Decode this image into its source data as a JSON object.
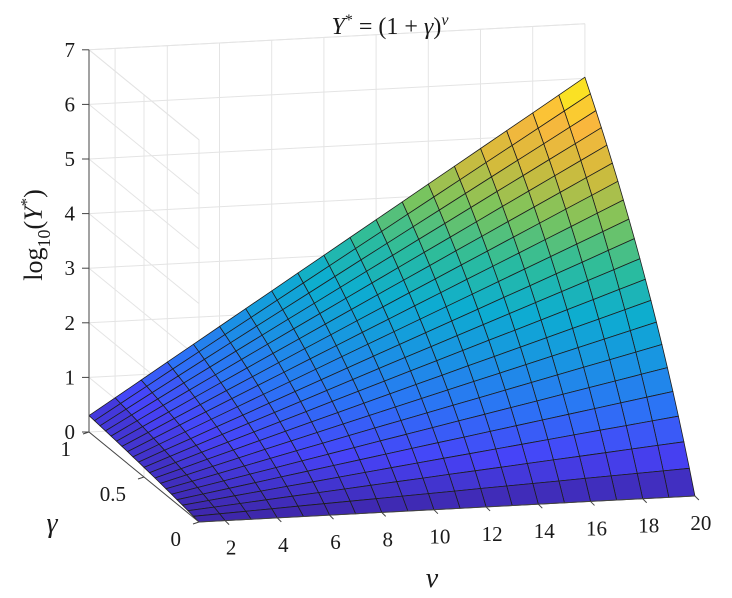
{
  "chart_data": {
    "type": "surface",
    "title": "Υ* = (1 + γ)^ν",
    "title_parts": {
      "base": "Υ",
      "sup": "*",
      "mid": " = (1 + ",
      "gamma": "γ",
      "close": ")",
      "exp": "ν"
    },
    "xlabel": "ν",
    "ylabel": "γ",
    "zlabel": {
      "pre": "log",
      "sub": "10",
      "open": "(",
      "base": "Υ",
      "sup": "*",
      "close": ")"
    },
    "x": {
      "name": "ν",
      "min": 1,
      "max": 20,
      "steps": 19,
      "ticks": [
        2,
        4,
        6,
        8,
        10,
        12,
        14,
        16,
        18,
        20
      ]
    },
    "y": {
      "name": "γ",
      "min": 0,
      "max": 1,
      "steps": 20,
      "ticks": [
        0,
        0.5,
        1
      ],
      "tick_labels": [
        "0",
        "0.5",
        "1"
      ]
    },
    "z": {
      "min": 0,
      "max": 7,
      "ticks": [
        0,
        1,
        2,
        3,
        4,
        5,
        6,
        7
      ]
    },
    "function": "z = ν · log10(1 + γ)",
    "colormap": [
      "#3e26a8",
      "#4743f8",
      "#2c73f6",
      "#1994e2",
      "#0dadd0",
      "#2cbc9c",
      "#7bc45d",
      "#d2bb3c",
      "#fbb73d",
      "#f9fb15"
    ],
    "grid": true
  }
}
